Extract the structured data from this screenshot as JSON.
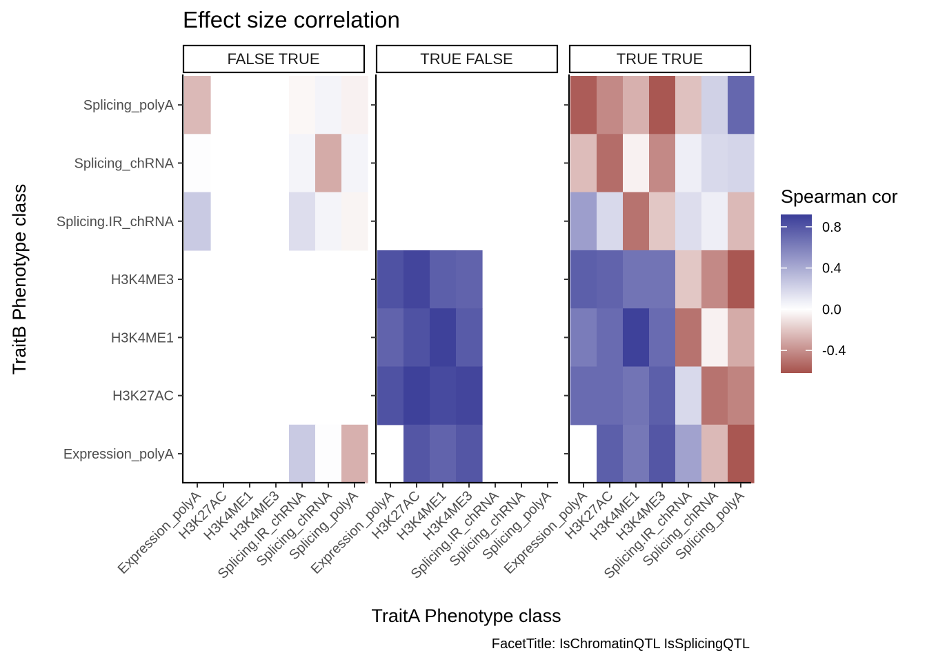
{
  "chart_data": {
    "type": "heatmap",
    "title": "Effect size correlation",
    "xlabel": "TraitA Phenotype class",
    "ylabel": "TraitB Phenotype class",
    "caption": "FacetTitle: IsChromatinQTL IsSplicingQTL",
    "legend": {
      "title": "Spearman cor",
      "position": "right",
      "ticks": [
        0.8,
        0.4,
        0.0,
        -0.4
      ],
      "tick_labels": [
        "0.8",
        "0.4",
        "0.0",
        "-0.4"
      ],
      "limits": [
        -0.62,
        0.92
      ],
      "colors": {
        "low": "#a6514c",
        "mid": "#ffffff",
        "high": "#3a3d98"
      }
    },
    "x_categories": [
      "Expression_polyA",
      "H3K27AC",
      "H3K4ME1",
      "H3K4ME3",
      "Splicing.IR_chRNA",
      "Splicing_chRNA",
      "Splicing_polyA"
    ],
    "y_categories": [
      "Splicing_polyA",
      "Splicing_chRNA",
      "Splicing.IR_chRNA",
      "H3K4ME3",
      "H3K4ME1",
      "H3K27AC",
      "Expression_polyA"
    ],
    "facets": [
      {
        "label": "FALSE TRUE",
        "values": [
          [
            -0.25,
            null,
            null,
            null,
            -0.03,
            0.05,
            -0.05
          ],
          [
            0.01,
            null,
            null,
            null,
            0.05,
            -0.3,
            0.05
          ],
          [
            0.25,
            null,
            null,
            null,
            0.16,
            0.05,
            -0.04
          ],
          [
            null,
            null,
            null,
            null,
            null,
            null,
            null
          ],
          [
            null,
            null,
            null,
            null,
            null,
            null,
            null
          ],
          [
            null,
            null,
            null,
            null,
            null,
            null,
            null
          ],
          [
            null,
            null,
            null,
            null,
            0.25,
            0.01,
            -0.28
          ]
        ]
      },
      {
        "label": "TRUE FALSE",
        "values": [
          [
            null,
            null,
            null,
            null,
            null,
            null,
            null
          ],
          [
            null,
            null,
            null,
            null,
            null,
            null,
            null
          ],
          [
            null,
            null,
            null,
            null,
            null,
            null,
            null
          ],
          [
            0.82,
            0.88,
            0.76,
            0.74,
            null,
            null,
            null
          ],
          [
            0.74,
            0.82,
            0.9,
            0.78,
            null,
            null,
            null
          ],
          [
            0.82,
            0.9,
            0.86,
            0.88,
            null,
            null,
            null
          ],
          [
            null,
            0.8,
            0.74,
            0.8,
            null,
            null,
            null
          ]
        ]
      },
      {
        "label": "TRUE TRUE",
        "values": [
          [
            -0.58,
            -0.42,
            -0.28,
            -0.6,
            -0.22,
            0.22,
            0.72
          ],
          [
            -0.24,
            -0.52,
            -0.05,
            -0.42,
            0.08,
            0.18,
            0.2
          ],
          [
            0.46,
            0.18,
            -0.5,
            -0.2,
            0.16,
            0.08,
            -0.25
          ],
          [
            0.76,
            0.74,
            0.66,
            0.66,
            -0.2,
            -0.42,
            -0.6
          ],
          [
            0.62,
            0.7,
            0.9,
            0.7,
            -0.5,
            -0.05,
            -0.3
          ],
          [
            0.7,
            0.7,
            0.66,
            0.76,
            0.18,
            -0.5,
            -0.44
          ],
          [
            null,
            0.76,
            0.64,
            0.8,
            0.44,
            -0.25,
            -0.6
          ]
        ]
      }
    ]
  }
}
